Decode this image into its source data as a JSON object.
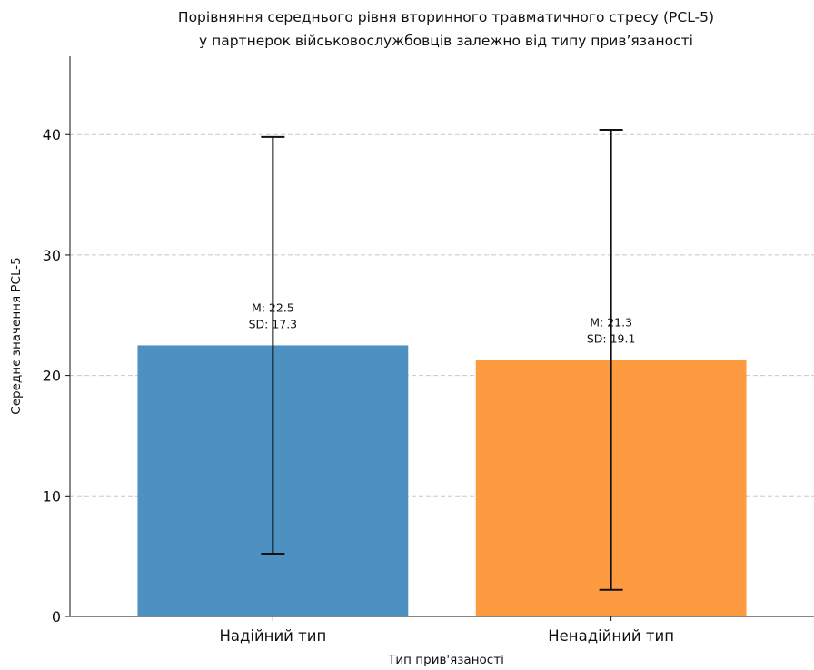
{
  "chart_data": {
    "type": "bar",
    "title_lines": [
      "Порівняння середнього рівня вторинного травматичного стресу (PCL-5)",
      "у партнерок військовослужбовців залежно від типу прив’язаності"
    ],
    "xlabel": "Тип прив'язаності",
    "ylabel": "Середнє значення PCL-5",
    "categories": [
      "Надійний тип",
      "Ненадійний тип"
    ],
    "values": [
      22.5,
      21.3
    ],
    "sd": [
      17.3,
      19.1
    ],
    "annotations": [
      [
        "M: 22.5",
        "SD: 17.3"
      ],
      [
        "M: 21.3",
        "SD: 19.1"
      ]
    ],
    "colors": [
      "#4c91c2",
      "#fe9a40"
    ],
    "ylim": [
      0,
      46.5
    ],
    "yticks": [
      0,
      10,
      20,
      30,
      40
    ],
    "grid": "y-dashed"
  }
}
